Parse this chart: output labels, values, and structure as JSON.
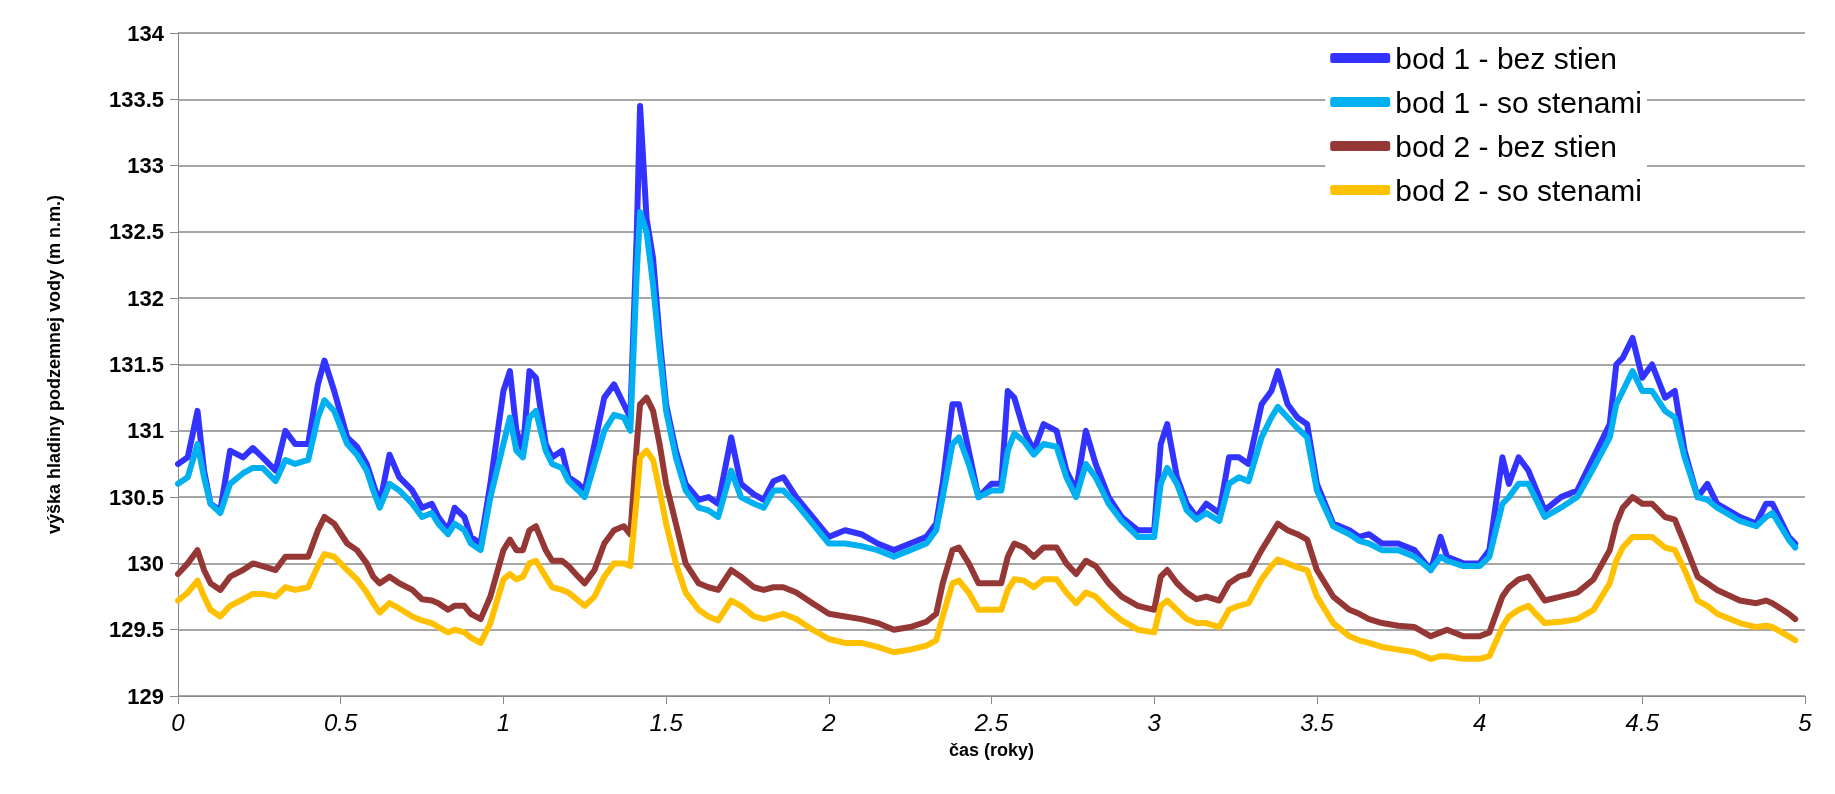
{
  "chart_data": {
    "type": "line",
    "xlabel": "čas (roky)",
    "ylabel": "výška hladiny podzemnej vody (m n.m.)",
    "x": [
      0,
      0.03,
      0.06,
      0.08,
      0.1,
      0.13,
      0.16,
      0.2,
      0.23,
      0.26,
      0.3,
      0.33,
      0.36,
      0.4,
      0.43,
      0.45,
      0.48,
      0.52,
      0.55,
      0.58,
      0.6,
      0.62,
      0.65,
      0.68,
      0.72,
      0.75,
      0.78,
      0.8,
      0.83,
      0.85,
      0.88,
      0.9,
      0.93,
      0.96,
      1.0,
      1.02,
      1.04,
      1.06,
      1.08,
      1.1,
      1.13,
      1.15,
      1.18,
      1.2,
      1.23,
      1.25,
      1.28,
      1.31,
      1.34,
      1.37,
      1.39,
      1.41,
      1.42,
      1.44,
      1.46,
      1.48,
      1.5,
      1.53,
      1.56,
      1.6,
      1.63,
      1.66,
      1.7,
      1.73,
      1.77,
      1.8,
      1.83,
      1.86,
      1.9,
      1.95,
      2.0,
      2.05,
      2.1,
      2.15,
      2.2,
      2.25,
      2.3,
      2.33,
      2.35,
      2.38,
      2.4,
      2.43,
      2.46,
      2.5,
      2.53,
      2.55,
      2.57,
      2.6,
      2.63,
      2.66,
      2.7,
      2.73,
      2.76,
      2.79,
      2.82,
      2.86,
      2.9,
      2.95,
      3.0,
      3.02,
      3.04,
      3.07,
      3.1,
      3.13,
      3.16,
      3.2,
      3.23,
      3.26,
      3.29,
      3.33,
      3.36,
      3.38,
      3.41,
      3.44,
      3.47,
      3.5,
      3.55,
      3.6,
      3.63,
      3.66,
      3.7,
      3.75,
      3.8,
      3.85,
      3.88,
      3.9,
      3.95,
      4.0,
      4.03,
      4.07,
      4.09,
      4.12,
      4.15,
      4.2,
      4.25,
      4.3,
      4.35,
      4.4,
      4.42,
      4.44,
      4.47,
      4.5,
      4.53,
      4.57,
      4.6,
      4.63,
      4.67,
      4.7,
      4.73,
      4.8,
      4.85,
      4.88,
      4.9,
      4.95,
      4.97
    ],
    "series": [
      {
        "name": "bod 1 - bez stien",
        "color": "#3333ff",
        "values": [
          130.75,
          130.8,
          131.15,
          130.7,
          130.45,
          130.4,
          130.85,
          130.8,
          130.87,
          130.8,
          130.7,
          131.0,
          130.9,
          130.9,
          131.35,
          131.53,
          131.3,
          130.95,
          130.88,
          130.75,
          130.6,
          130.45,
          130.82,
          130.65,
          130.55,
          130.42,
          130.45,
          130.35,
          130.25,
          130.42,
          130.35,
          130.2,
          130.15,
          130.6,
          131.3,
          131.45,
          131.0,
          130.85,
          131.45,
          131.4,
          130.9,
          130.8,
          130.85,
          130.65,
          130.6,
          130.55,
          130.9,
          131.25,
          131.35,
          131.2,
          131.1,
          132.5,
          133.45,
          132.6,
          132.3,
          131.7,
          131.2,
          130.85,
          130.6,
          130.48,
          130.5,
          130.45,
          130.95,
          130.6,
          130.52,
          130.48,
          130.62,
          130.65,
          130.5,
          130.35,
          130.2,
          130.25,
          130.22,
          130.15,
          130.1,
          130.15,
          130.2,
          130.3,
          130.6,
          131.2,
          131.2,
          130.85,
          130.5,
          130.6,
          130.6,
          131.3,
          131.25,
          131.0,
          130.85,
          131.05,
          131.0,
          130.7,
          130.55,
          131.0,
          130.75,
          130.5,
          130.35,
          130.25,
          130.25,
          130.9,
          131.05,
          130.65,
          130.45,
          130.35,
          130.45,
          130.38,
          130.8,
          130.8,
          130.75,
          131.2,
          131.3,
          131.45,
          131.2,
          131.1,
          131.05,
          130.6,
          130.3,
          130.25,
          130.2,
          130.22,
          130.15,
          130.15,
          130.1,
          129.95,
          130.2,
          130.05,
          130.0,
          130.0,
          130.1,
          130.8,
          130.6,
          130.8,
          130.7,
          130.4,
          130.5,
          130.55,
          130.8,
          131.05,
          131.5,
          131.55,
          131.7,
          131.4,
          131.5,
          131.25,
          131.3,
          130.85,
          130.5,
          130.6,
          130.45,
          130.35,
          130.3,
          130.45,
          130.45,
          130.2,
          130.15
        ]
      },
      {
        "name": "bod 1 - so stenami",
        "color": "#00b0f0",
        "values": [
          130.6,
          130.65,
          130.9,
          130.65,
          130.45,
          130.38,
          130.6,
          130.68,
          130.72,
          130.72,
          130.62,
          130.78,
          130.75,
          130.78,
          131.1,
          131.23,
          131.15,
          130.9,
          130.82,
          130.7,
          130.55,
          130.42,
          130.6,
          130.55,
          130.45,
          130.35,
          130.38,
          130.3,
          130.22,
          130.3,
          130.25,
          130.15,
          130.1,
          130.5,
          130.9,
          131.1,
          130.85,
          130.8,
          131.1,
          131.15,
          130.85,
          130.75,
          130.72,
          130.62,
          130.55,
          130.5,
          130.75,
          131.0,
          131.12,
          131.1,
          131.0,
          132.2,
          132.65,
          132.5,
          132.1,
          131.6,
          131.15,
          130.8,
          130.55,
          130.42,
          130.4,
          130.35,
          130.7,
          130.5,
          130.45,
          130.42,
          130.55,
          130.55,
          130.45,
          130.3,
          130.15,
          130.15,
          130.13,
          130.1,
          130.05,
          130.1,
          130.15,
          130.25,
          130.5,
          130.9,
          130.95,
          130.75,
          130.5,
          130.55,
          130.55,
          130.85,
          130.98,
          130.92,
          130.82,
          130.9,
          130.88,
          130.65,
          130.5,
          130.75,
          130.65,
          130.45,
          130.32,
          130.2,
          130.2,
          130.6,
          130.72,
          130.6,
          130.4,
          130.33,
          130.38,
          130.32,
          130.6,
          130.65,
          130.62,
          130.95,
          131.1,
          131.18,
          131.1,
          131.02,
          130.95,
          130.55,
          130.28,
          130.22,
          130.17,
          130.15,
          130.1,
          130.1,
          130.05,
          129.95,
          130.05,
          130.02,
          129.98,
          129.98,
          130.05,
          130.45,
          130.5,
          130.6,
          130.6,
          130.35,
          130.42,
          130.5,
          130.72,
          130.95,
          131.2,
          131.3,
          131.45,
          131.3,
          131.3,
          131.15,
          131.1,
          130.8,
          130.5,
          130.48,
          130.42,
          130.32,
          130.28,
          130.35,
          130.38,
          130.18,
          130.12
        ]
      },
      {
        "name": "bod 2 - bez stien",
        "color": "#953735",
        "values": [
          129.92,
          130.0,
          130.1,
          129.95,
          129.85,
          129.8,
          129.9,
          129.95,
          130.0,
          129.98,
          129.95,
          130.05,
          130.05,
          130.05,
          130.25,
          130.35,
          130.3,
          130.15,
          130.1,
          130.0,
          129.9,
          129.85,
          129.9,
          129.85,
          129.8,
          129.73,
          129.72,
          129.7,
          129.65,
          129.68,
          129.68,
          129.62,
          129.58,
          129.75,
          130.1,
          130.18,
          130.1,
          130.1,
          130.25,
          130.28,
          130.1,
          130.02,
          130.02,
          129.98,
          129.9,
          129.85,
          129.95,
          130.15,
          130.25,
          130.28,
          130.22,
          130.9,
          131.2,
          131.25,
          131.15,
          130.9,
          130.6,
          130.3,
          130.0,
          129.85,
          129.82,
          129.8,
          129.95,
          129.9,
          129.82,
          129.8,
          129.82,
          129.82,
          129.78,
          129.7,
          129.62,
          129.6,
          129.58,
          129.55,
          129.5,
          129.52,
          129.56,
          129.62,
          129.85,
          130.1,
          130.12,
          130.0,
          129.85,
          129.85,
          129.85,
          130.05,
          130.15,
          130.12,
          130.05,
          130.12,
          130.12,
          130.0,
          129.92,
          130.02,
          129.98,
          129.85,
          129.75,
          129.68,
          129.65,
          129.9,
          129.95,
          129.85,
          129.78,
          129.73,
          129.75,
          129.72,
          129.85,
          129.9,
          129.92,
          130.1,
          130.22,
          130.3,
          130.25,
          130.22,
          130.18,
          129.95,
          129.75,
          129.65,
          129.62,
          129.58,
          129.55,
          129.53,
          129.52,
          129.45,
          129.48,
          129.5,
          129.45,
          129.45,
          129.48,
          129.75,
          129.82,
          129.88,
          129.9,
          129.72,
          129.75,
          129.78,
          129.88,
          130.1,
          130.3,
          130.42,
          130.5,
          130.45,
          130.45,
          130.35,
          130.33,
          130.15,
          129.9,
          129.85,
          129.8,
          129.72,
          129.7,
          129.72,
          129.7,
          129.62,
          129.58
        ]
      },
      {
        "name": "bod 2 - so stenami",
        "color": "#ffc000",
        "values": [
          129.72,
          129.78,
          129.87,
          129.75,
          129.65,
          129.6,
          129.68,
          129.73,
          129.77,
          129.77,
          129.75,
          129.82,
          129.8,
          129.82,
          129.98,
          130.07,
          130.05,
          129.95,
          129.88,
          129.78,
          129.7,
          129.63,
          129.7,
          129.66,
          129.6,
          129.57,
          129.55,
          129.52,
          129.48,
          129.5,
          129.48,
          129.44,
          129.4,
          129.55,
          129.88,
          129.92,
          129.88,
          129.9,
          130.0,
          130.02,
          129.9,
          129.82,
          129.8,
          129.78,
          129.72,
          129.68,
          129.75,
          129.9,
          130.0,
          130.0,
          129.98,
          130.5,
          130.8,
          130.85,
          130.78,
          130.55,
          130.3,
          130.0,
          129.78,
          129.65,
          129.6,
          129.57,
          129.72,
          129.68,
          129.6,
          129.58,
          129.6,
          129.62,
          129.58,
          129.5,
          129.43,
          129.4,
          129.4,
          129.37,
          129.33,
          129.35,
          129.38,
          129.42,
          129.6,
          129.85,
          129.87,
          129.78,
          129.65,
          129.65,
          129.65,
          129.8,
          129.88,
          129.87,
          129.82,
          129.88,
          129.88,
          129.78,
          129.7,
          129.78,
          129.75,
          129.65,
          129.57,
          129.5,
          129.48,
          129.68,
          129.72,
          129.65,
          129.58,
          129.55,
          129.55,
          129.52,
          129.65,
          129.68,
          129.7,
          129.88,
          129.98,
          130.03,
          130.0,
          129.97,
          129.95,
          129.75,
          129.55,
          129.45,
          129.42,
          129.4,
          129.37,
          129.35,
          129.33,
          129.28,
          129.3,
          129.3,
          129.28,
          129.28,
          129.3,
          129.52,
          129.6,
          129.65,
          129.68,
          129.55,
          129.56,
          129.58,
          129.65,
          129.85,
          130.02,
          130.12,
          130.2,
          130.2,
          130.2,
          130.12,
          130.1,
          129.95,
          129.72,
          129.68,
          129.62,
          129.55,
          129.52,
          129.53,
          129.52,
          129.45,
          129.42
        ]
      }
    ],
    "xlim": [
      0,
      5
    ],
    "xticks": [
      0,
      0.5,
      1,
      1.5,
      2,
      2.5,
      3,
      3.5,
      4,
      4.5,
      5
    ],
    "ylim": [
      129,
      134
    ],
    "yticks": [
      129,
      129.5,
      130,
      130.5,
      131,
      131.5,
      132,
      132.5,
      133,
      133.5,
      134
    ],
    "grid": "y",
    "legend": "top right",
    "marker": "none",
    "line_style": "solid"
  }
}
